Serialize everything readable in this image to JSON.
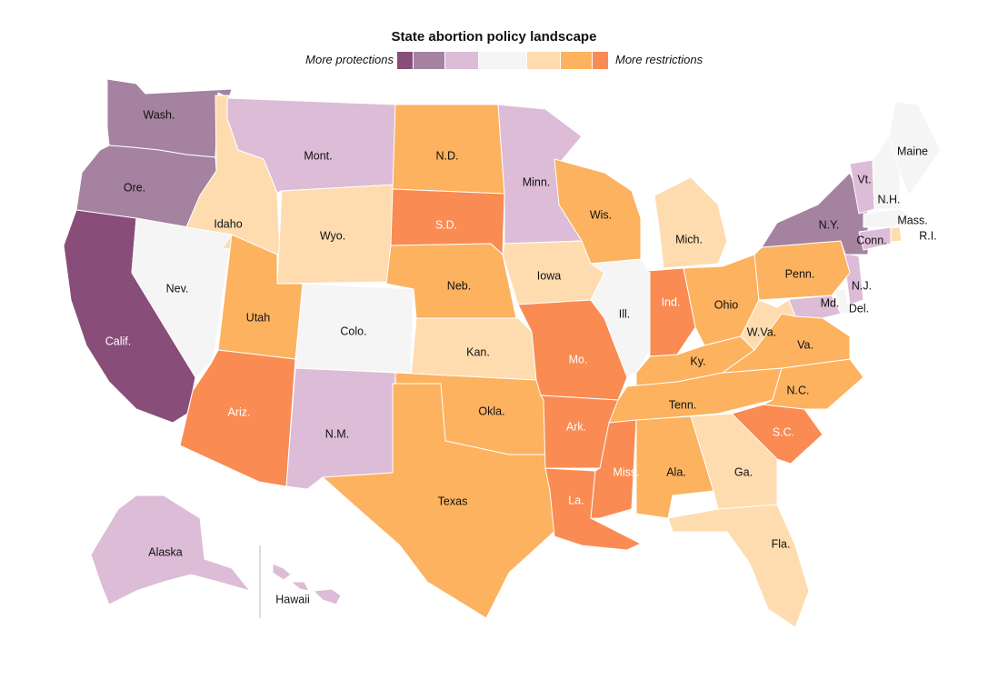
{
  "title": "State abortion policy landscape",
  "legend": {
    "left_label": "More protections",
    "right_label": "More restrictions",
    "scale": [
      "#884d79",
      "#a582a0",
      "#dcbcd6",
      "#f5f5f5",
      "#fedcaf",
      "#fcb25e",
      "#f98b53"
    ]
  },
  "states": [
    {
      "name": "Wash.",
      "category": 1
    },
    {
      "name": "Ore.",
      "category": 1
    },
    {
      "name": "Calif.",
      "category": 0
    },
    {
      "name": "Nev.",
      "category": 3
    },
    {
      "name": "Idaho",
      "category": 4
    },
    {
      "name": "Mont.",
      "category": 2
    },
    {
      "name": "Wyo.",
      "category": 4
    },
    {
      "name": "Utah",
      "category": 5
    },
    {
      "name": "Ariz.",
      "category": 6
    },
    {
      "name": "Colo.",
      "category": 3
    },
    {
      "name": "N.M.",
      "category": 2
    },
    {
      "name": "N.D.",
      "category": 5
    },
    {
      "name": "S.D.",
      "category": 6
    },
    {
      "name": "Neb.",
      "category": 5
    },
    {
      "name": "Kan.",
      "category": 4
    },
    {
      "name": "Okla.",
      "category": 5
    },
    {
      "name": "Texas",
      "category": 5
    },
    {
      "name": "Minn.",
      "category": 2
    },
    {
      "name": "Iowa",
      "category": 4
    },
    {
      "name": "Mo.",
      "category": 6
    },
    {
      "name": "Ark.",
      "category": 6
    },
    {
      "name": "La.",
      "category": 6
    },
    {
      "name": "Wis.",
      "category": 5
    },
    {
      "name": "Ill.",
      "category": 3
    },
    {
      "name": "Mich.",
      "category": 4
    },
    {
      "name": "Ind.",
      "category": 6
    },
    {
      "name": "Ohio",
      "category": 5
    },
    {
      "name": "Ky.",
      "category": 5
    },
    {
      "name": "Tenn.",
      "category": 5
    },
    {
      "name": "Miss.",
      "category": 6
    },
    {
      "name": "Ala.",
      "category": 5
    },
    {
      "name": "Ga.",
      "category": 4
    },
    {
      "name": "Fla.",
      "category": 4
    },
    {
      "name": "S.C.",
      "category": 6
    },
    {
      "name": "N.C.",
      "category": 5
    },
    {
      "name": "Va.",
      "category": 5
    },
    {
      "name": "W.Va.",
      "category": 4
    },
    {
      "name": "Md.",
      "category": 2
    },
    {
      "name": "Del.",
      "category": 3
    },
    {
      "name": "N.J.",
      "category": 2
    },
    {
      "name": "Penn.",
      "category": 5
    },
    {
      "name": "N.Y.",
      "category": 1
    },
    {
      "name": "Conn.",
      "category": 2
    },
    {
      "name": "R.I.",
      "category": 4
    },
    {
      "name": "Mass.",
      "category": 3
    },
    {
      "name": "Vt.",
      "category": 2
    },
    {
      "name": "N.H.",
      "category": 3
    },
    {
      "name": "Maine",
      "category": 3
    },
    {
      "name": "Alaska",
      "category": 2
    },
    {
      "name": "Hawaii",
      "category": 2
    }
  ]
}
